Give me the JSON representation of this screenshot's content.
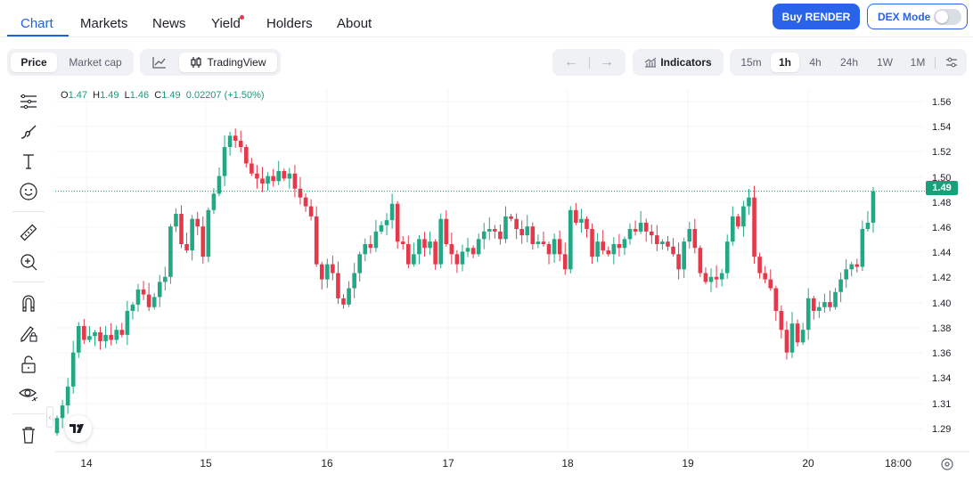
{
  "nav": {
    "tabs": [
      {
        "label": "Chart",
        "active": true
      },
      {
        "label": "Markets"
      },
      {
        "label": "News"
      },
      {
        "label": "Yield",
        "dot": true
      },
      {
        "label": "Holders"
      },
      {
        "label": "About"
      }
    ],
    "buy_label": "Buy RENDER",
    "dex_label": "DEX Mode",
    "dex_enabled": false
  },
  "toolbar": {
    "price_label": "Price",
    "marketcap_label": "Market cap",
    "tradingview_label": "TradingView",
    "indicators_label": "Indicators",
    "intervals": [
      "15m",
      "1h",
      "4h",
      "24h",
      "1W",
      "1M"
    ],
    "active_interval": "1h"
  },
  "rail_icons": [
    "crosshair-lines-icon",
    "brush-icon",
    "text-icon",
    "emoji-icon",
    "ruler-icon",
    "zoom-in-icon",
    "magnet-icon",
    "lock-pencil-icon",
    "unlock-icon",
    "eye-icon",
    "trash-icon"
  ],
  "legend": {
    "o_label": "O",
    "o": "1.47",
    "h_label": "H",
    "h": "1.49",
    "l_label": "L",
    "l": "1.46",
    "c_label": "C",
    "c": "1.49",
    "change": "0.02207 (+1.50%)"
  },
  "last_price_label": "1.49",
  "colors": {
    "up": "#22a884",
    "down": "#e5394b",
    "accent": "#2a62ea",
    "tag": "#18a07a"
  },
  "chart_data": {
    "type": "candlestick",
    "y_ticks": [
      "1.56",
      "1.54",
      "1.52",
      "1.50",
      "1.48",
      "1.46",
      "1.44",
      "1.42",
      "1.40",
      "1.38",
      "1.36",
      "1.34",
      "1.31",
      "1.29"
    ],
    "x_ticks": [
      "14",
      "15",
      "16",
      "17",
      "18",
      "19",
      "20",
      "18:00"
    ],
    "ylim": [
      1.284,
      1.571
    ],
    "last_price": 1.49,
    "series_closes": [
      1.31,
      1.32,
      1.335,
      1.362,
      1.383,
      1.372,
      1.375,
      1.378,
      1.371,
      1.376,
      1.372,
      1.38,
      1.376,
      1.395,
      1.4,
      1.412,
      1.408,
      1.398,
      1.406,
      1.418,
      1.422,
      1.462,
      1.472,
      1.448,
      1.443,
      1.468,
      1.462,
      1.438,
      1.475,
      1.488,
      1.502,
      1.525,
      1.534,
      1.53,
      1.525,
      1.512,
      1.504,
      1.5,
      1.496,
      1.502,
      1.498,
      1.506,
      1.5,
      1.504,
      1.492,
      1.485,
      1.478,
      1.47,
      1.432,
      1.42,
      1.432,
      1.425,
      1.405,
      1.4,
      1.413,
      1.425,
      1.44,
      1.448,
      1.445,
      1.458,
      1.463,
      1.467,
      1.48,
      1.45,
      1.448,
      1.432,
      1.44,
      1.452,
      1.445,
      1.45,
      1.432,
      1.468,
      1.448,
      1.44,
      1.432,
      1.442,
      1.445,
      1.44,
      1.452,
      1.458,
      1.46,
      1.458,
      1.452,
      1.47,
      1.468,
      1.46,
      1.455,
      1.462,
      1.448,
      1.45,
      1.448,
      1.44,
      1.452,
      1.44,
      1.428,
      1.475,
      1.465,
      1.468,
      1.46,
      1.438,
      1.45,
      1.443,
      1.44,
      1.448,
      1.445,
      1.452,
      1.46,
      1.458,
      1.465,
      1.458,
      1.455,
      1.448,
      1.45,
      1.446,
      1.44,
      1.428,
      1.45,
      1.46,
      1.445,
      1.425,
      1.418,
      1.422,
      1.42,
      1.425,
      1.45,
      1.47,
      1.462,
      1.478,
      1.485,
      1.438,
      1.425,
      1.42,
      1.413,
      1.395,
      1.38,
      1.362,
      1.385,
      1.37,
      1.38,
      1.405,
      1.395,
      1.398,
      1.402,
      1.398,
      1.41,
      1.42,
      1.428,
      1.432,
      1.43,
      1.46,
      1.465,
      1.49
    ]
  }
}
